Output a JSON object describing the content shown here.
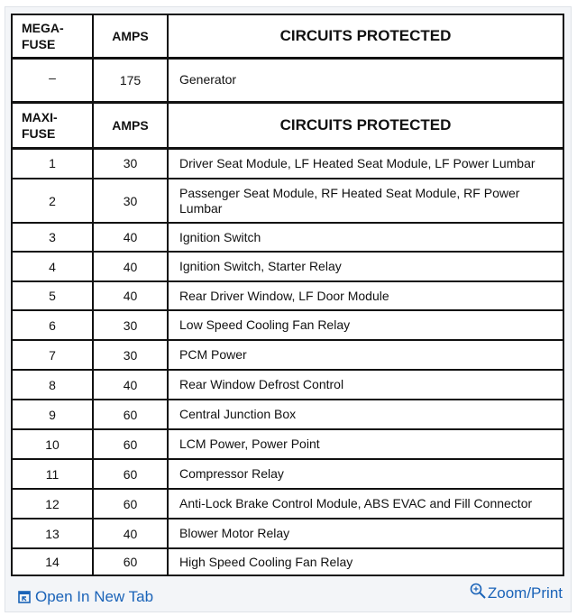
{
  "mega_header": {
    "col1": "MEGA-\nFUSE",
    "col1_a": "MEGA-",
    "col1_b": "FUSE",
    "col2": "AMPS",
    "col3": "CIRCUITS PROTECTED"
  },
  "mega_rows": [
    {
      "fuse": "–",
      "amps": "175",
      "circuits": "Generator"
    }
  ],
  "maxi_header": {
    "col1_a": "MAXI-",
    "col1_b": "FUSE",
    "col2": "AMPS",
    "col3": "CIRCUITS PROTECTED"
  },
  "maxi_rows": [
    {
      "fuse": "1",
      "amps": "30",
      "circuits": "Driver Seat Module, LF Heated Seat Module, LF Power Lumbar"
    },
    {
      "fuse": "2",
      "amps": "30",
      "circuits": "Passenger Seat Module, RF Heated Seat Module, RF Power Lumbar"
    },
    {
      "fuse": "3",
      "amps": "40",
      "circuits": "Ignition Switch"
    },
    {
      "fuse": "4",
      "amps": "40",
      "circuits": "Ignition Switch, Starter Relay"
    },
    {
      "fuse": "5",
      "amps": "40",
      "circuits": "Rear Driver Window, LF Door Module"
    },
    {
      "fuse": "6",
      "amps": "30",
      "circuits": "Low Speed Cooling Fan Relay"
    },
    {
      "fuse": "7",
      "amps": "30",
      "circuits": "PCM Power"
    },
    {
      "fuse": "8",
      "amps": "40",
      "circuits": "Rear Window Defrost Control"
    },
    {
      "fuse": "9",
      "amps": "60",
      "circuits": "Central Junction Box"
    },
    {
      "fuse": "10",
      "amps": "60",
      "circuits": "LCM Power, Power Point"
    },
    {
      "fuse": "11",
      "amps": "60",
      "circuits": "Compressor Relay"
    },
    {
      "fuse": "12",
      "amps": "60",
      "circuits": "Anti-Lock Brake Control Module, ABS EVAC and Fill Connector"
    },
    {
      "fuse": "13",
      "amps": "40",
      "circuits": "Blower Motor Relay"
    },
    {
      "fuse": "14",
      "amps": "60",
      "circuits": "High Speed Cooling Fan Relay"
    }
  ],
  "footer": {
    "open_new_tab": "Open In New Tab",
    "zoom_print": "Zoom/Print",
    "link_color": "#1a63b8"
  }
}
